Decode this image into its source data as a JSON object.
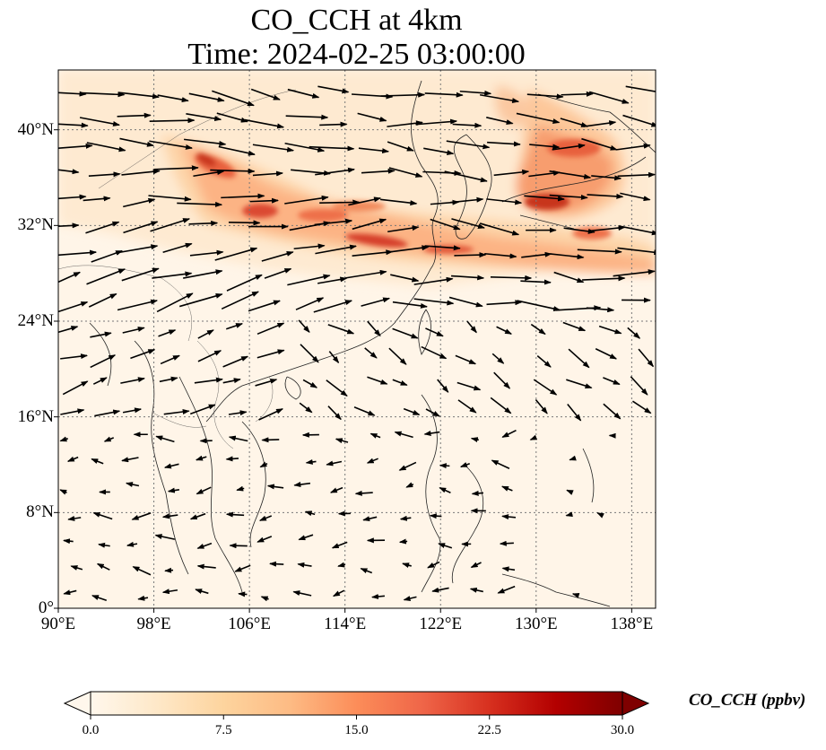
{
  "title_line1": "CO_CCH at 4km",
  "title_line2": "Time: 2024-02-25 03:00:00",
  "map": {
    "lon_range": [
      90,
      140
    ],
    "lat_range": [
      0,
      45
    ],
    "lon_ticks": [
      "90°E",
      "98°E",
      "106°E",
      "114°E",
      "122°E",
      "130°E",
      "138°E"
    ],
    "lon_tick_values": [
      90,
      98,
      106,
      114,
      122,
      130,
      138
    ],
    "lat_ticks": [
      "0°",
      "8°N",
      "16°N",
      "24°N",
      "32°N",
      "40°N"
    ],
    "lat_tick_values": [
      0,
      8,
      16,
      24,
      32,
      40
    ],
    "gridlines": true,
    "field_variable": "CO_CCH",
    "overlay": "wind vectors"
  },
  "colorbar": {
    "label": "CO_CCH (ppbv)",
    "ticks": [
      "0.0",
      "7.5",
      "15.0",
      "22.5",
      "30.0"
    ],
    "tick_values": [
      0,
      7.5,
      15,
      22.5,
      30
    ],
    "range": [
      0,
      30
    ],
    "extend": "both",
    "colormap": "OrRd",
    "colors": [
      "#fff7ec",
      "#fee8c8",
      "#fdd49e",
      "#fdbb84",
      "#fc8d59",
      "#ef6548",
      "#d7301f",
      "#b30000",
      "#7f0000"
    ]
  }
}
